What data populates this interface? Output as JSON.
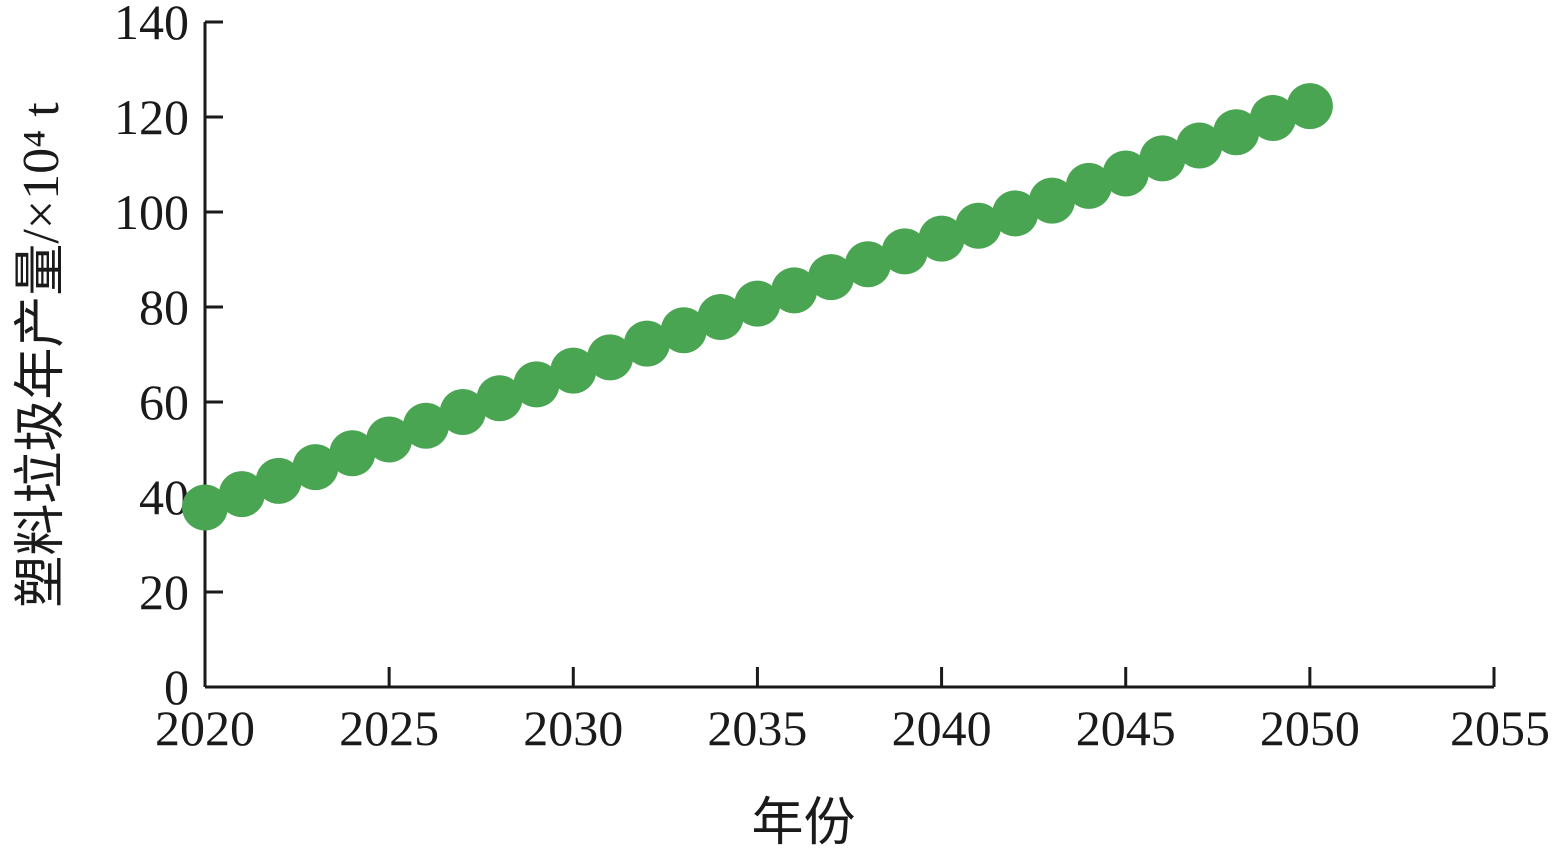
{
  "chart_data": {
    "type": "scatter",
    "title": "",
    "xlabel": "年份",
    "ylabel": "塑料垃圾年产量/×10⁴ t",
    "xlim": [
      2020,
      2055
    ],
    "ylim": [
      0,
      140
    ],
    "x_ticks": [
      "2020",
      "2025",
      "2030",
      "2035",
      "2040",
      "2045",
      "2050",
      "2055"
    ],
    "y_ticks": [
      "0",
      "20",
      "40",
      "60",
      "80",
      "100",
      "120",
      "140"
    ],
    "grid": false,
    "legend": "none",
    "marker_color": "#4aa552",
    "axis_color": "#1a1a1a",
    "series": [
      {
        "x": [
          2020,
          2021,
          2022,
          2023,
          2024,
          2025,
          2026,
          2027,
          2028,
          2029,
          2030,
          2031,
          2032,
          2033,
          2034,
          2035,
          2036,
          2037,
          2038,
          2039,
          2040,
          2041,
          2042,
          2043,
          2044,
          2045,
          2046,
          2047,
          2048,
          2049,
          2050
        ],
        "y": [
          37.8,
          40.6,
          43.4,
          46.3,
          49.2,
          52.1,
          55.0,
          57.9,
          60.8,
          63.7,
          66.6,
          69.4,
          72.3,
          75.1,
          77.9,
          80.7,
          83.5,
          86.3,
          89.0,
          91.7,
          94.4,
          97.1,
          99.7,
          102.4,
          105.5,
          108.1,
          111.3,
          114.0,
          116.8,
          119.8,
          122.3
        ]
      }
    ]
  }
}
